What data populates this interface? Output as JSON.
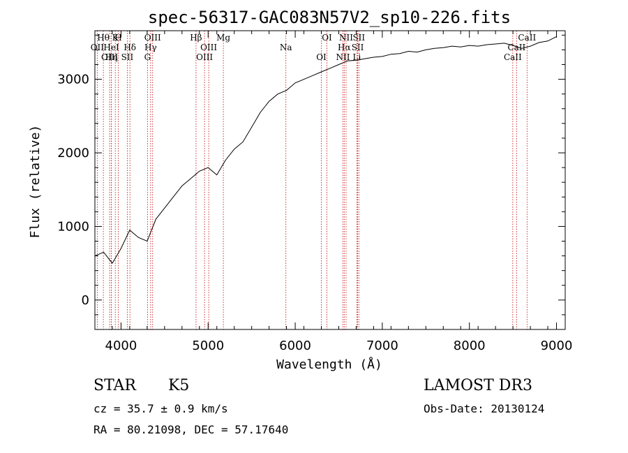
{
  "chart_data": {
    "type": "line",
    "title": "spec-56317-GAC083N57V2_sp10-226.fits",
    "xlabel": "Wavelength (Å)",
    "ylabel": "Flux (relative)",
    "xlim": [
      3700,
      9100
    ],
    "ylim": [
      -400,
      3660
    ],
    "x_ticks": [
      4000,
      5000,
      6000,
      7000,
      8000,
      9000
    ],
    "y_ticks": [
      0,
      1000,
      2000,
      3000
    ],
    "series": [
      {
        "name": "spectrum",
        "x": [
          3700,
          3800,
          3900,
          4000,
          4100,
          4200,
          4300,
          4400,
          4500,
          4600,
          4700,
          4800,
          4900,
          5000,
          5100,
          5200,
          5300,
          5400,
          5500,
          5600,
          5700,
          5800,
          5900,
          6000,
          6100,
          6200,
          6300,
          6400,
          6500,
          6600,
          6700,
          6800,
          6900,
          7000,
          7100,
          7200,
          7300,
          7400,
          7500,
          7600,
          7700,
          7800,
          7900,
          8000,
          8100,
          8200,
          8300,
          8400,
          8500,
          8600,
          8700,
          8800,
          8900,
          9000
        ],
        "y": [
          600,
          650,
          500,
          700,
          950,
          850,
          800,
          1100,
          1250,
          1400,
          1550,
          1650,
          1750,
          1800,
          1700,
          1900,
          2050,
          2150,
          2350,
          2550,
          2700,
          2800,
          2850,
          2950,
          3000,
          3050,
          3100,
          3150,
          3200,
          3250,
          3260,
          3280,
          3300,
          3310,
          3340,
          3350,
          3380,
          3370,
          3400,
          3420,
          3430,
          3450,
          3440,
          3460,
          3450,
          3470,
          3480,
          3490,
          3460,
          3420,
          3450,
          3500,
          3520,
          3580
        ]
      }
    ],
    "lines": [
      {
        "name": "Hθ",
        "x": 3797
      },
      {
        "name": "OII",
        "x": 3727
      },
      {
        "name": "OIII",
        "x": 3869
      },
      {
        "name": "K",
        "x": 3934
      },
      {
        "name": "HeI",
        "x": 3889
      },
      {
        "name": "Hη",
        "x": 3889
      },
      {
        "name": "H",
        "x": 3968
      },
      {
        "name": "Hδ",
        "x": 4102
      },
      {
        "name": "SII",
        "x": 4072
      },
      {
        "name": "OIII",
        "x": 4363
      },
      {
        "name": "Hγ",
        "x": 4340
      },
      {
        "name": "G",
        "x": 4304
      },
      {
        "name": "Hβ",
        "x": 4861
      },
      {
        "name": "OIII",
        "x": 5007
      },
      {
        "name": "OIII",
        "x": 4959
      },
      {
        "name": "Mg",
        "x": 5175
      },
      {
        "name": "Na",
        "x": 5893
      },
      {
        "name": "OI",
        "x": 6300
      },
      {
        "name": "OI",
        "x": 6364
      },
      {
        "name": "Hα",
        "x": 6563
      },
      {
        "name": "NII",
        "x": 6548
      },
      {
        "name": "NII",
        "x": 6584
      },
      {
        "name": "SII",
        "x": 6717
      },
      {
        "name": "Li",
        "x": 6708
      },
      {
        "name": "SII",
        "x": 6731
      },
      {
        "name": "CaII",
        "x": 8542
      },
      {
        "name": "CaII",
        "x": 8498
      },
      {
        "name": "CaII",
        "x": 8662
      }
    ]
  },
  "info": {
    "object": "STAR",
    "subclass": "K5",
    "survey": "LAMOST DR3",
    "cz": "cz = 35.7 ± 0.9 km/s",
    "obs_date": "Obs-Date: 20130124",
    "radec": "RA =  80.21098, DEC =  57.17640"
  }
}
